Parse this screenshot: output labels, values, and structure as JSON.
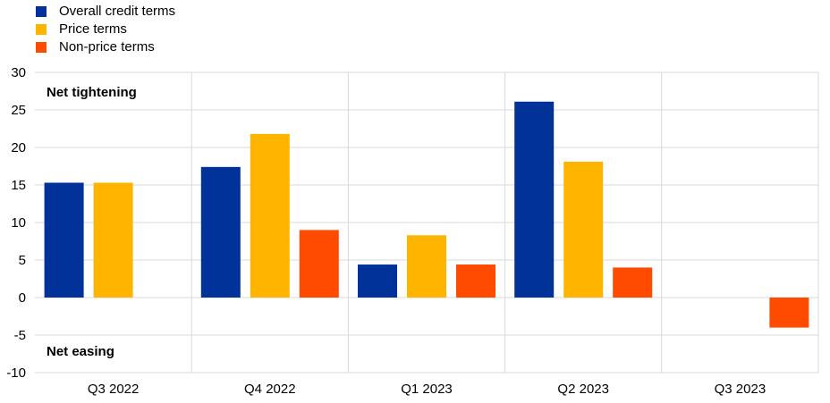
{
  "chart_data": {
    "type": "bar",
    "categories": [
      "Q3 2022",
      "Q4 2022",
      "Q1 2023",
      "Q2 2023",
      "Q3 2023"
    ],
    "series": [
      {
        "name": "Overall credit terms",
        "color": "#003299",
        "values": [
          15.3,
          17.4,
          4.4,
          26.1,
          null
        ]
      },
      {
        "name": "Price terms",
        "color": "#FFB400",
        "values": [
          15.3,
          21.8,
          8.3,
          18.1,
          null
        ]
      },
      {
        "name": "Non-price terms",
        "color": "#FF4B00",
        "values": [
          null,
          9.0,
          4.4,
          4.0,
          -4.0
        ]
      }
    ],
    "ylim": [
      -10,
      30
    ],
    "yticks": [
      -10,
      -5,
      0,
      5,
      10,
      15,
      20,
      25,
      30
    ],
    "annotations": {
      "top": "Net tightening",
      "bottom": "Net easing"
    },
    "grid": true,
    "legend_position": "top-left"
  }
}
